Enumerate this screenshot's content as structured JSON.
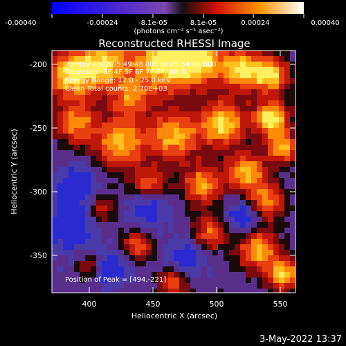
{
  "colorbar": {
    "tick_labels": [
      "-0.00040",
      "-0.00024",
      "-8.1e-05",
      "8.1e-05",
      "0.00024",
      "0.00040"
    ],
    "unit_label": "(photons cm⁻² s⁻¹ asec⁻²)"
  },
  "plot": {
    "title": "Reconstructed RHESSI Image",
    "xlabel": "Heliocentric X (arcsec)",
    "ylabel": "Heliocentric Y (arcsec)",
    "x_ticks": [
      "400",
      "450",
      "500",
      "550"
    ],
    "y_ticks": [
      "-200",
      "-250",
      "-300",
      "-350"
    ],
    "annotations": [
      "23-Nov-2002 05:49:48.000 to 05:54:04.000",
      "Detectors: 3F 4F 5F 6F 7F 8F, Att 0",
      "Energy Range: 12.0 - 25.0 keV",
      "Clean      Total counts: 2.70E+03"
    ],
    "peak_label": "Position of Peak = [494,-221]"
  },
  "footer": {
    "timestamp": "3-May-2022 13:37"
  }
}
